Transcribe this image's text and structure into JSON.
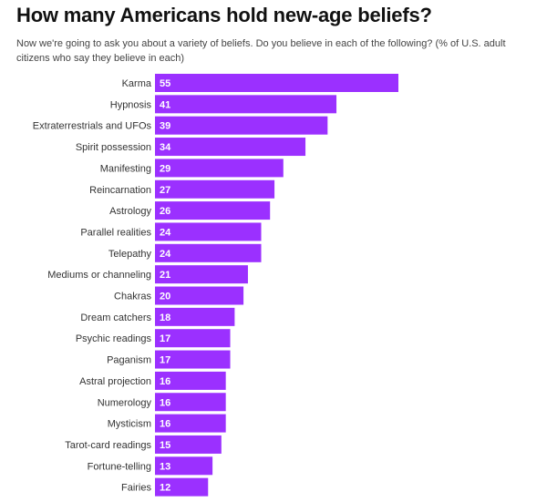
{
  "chart_data": {
    "type": "bar",
    "orientation": "horizontal",
    "title": "How many Americans hold new-age beliefs?",
    "subtitle": "Now we're going to ask you about a variety of beliefs. Do you believe in each of the following? (% of U.S. adult citizens who say they believe in each)",
    "xlabel": "",
    "ylabel": "",
    "xlim": [
      0,
      55
    ],
    "grid": false,
    "bar_color": "#9b30ff",
    "categories": [
      "Karma",
      "Hypnosis",
      "Extraterrestrials and UFOs",
      "Spirit possession",
      "Manifesting",
      "Reincarnation",
      "Astrology",
      "Parallel realities",
      "Telepathy",
      "Mediums or channeling",
      "Chakras",
      "Dream catchers",
      "Psychic readings",
      "Paganism",
      "Astral projection",
      "Numerology",
      "Mysticism",
      "Tarot-card readings",
      "Fortune-telling",
      "Fairies"
    ],
    "values": [
      55,
      41,
      39,
      34,
      29,
      27,
      26,
      24,
      24,
      21,
      20,
      18,
      17,
      17,
      16,
      16,
      16,
      15,
      13,
      12
    ]
  }
}
